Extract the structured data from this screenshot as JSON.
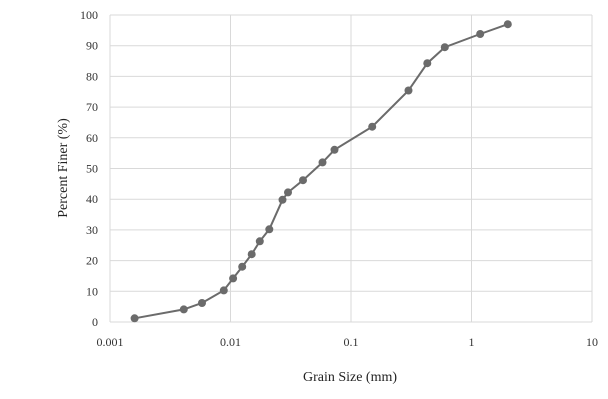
{
  "chart_data": {
    "type": "scatter",
    "title": "",
    "xlabel": "Grain Size (mm)",
    "ylabel": "Percent Finer (%)",
    "xscale": "log",
    "xlim": [
      0.001,
      10
    ],
    "ylim": [
      0,
      100
    ],
    "grid": true,
    "legend": "none",
    "line_color": "#6b6b6b",
    "marker_color": "#6b6b6b",
    "grid_color": "#d9d9d9",
    "x_ticks": [
      "0.001",
      "0.01",
      "0.1",
      "1",
      "10"
    ],
    "y_ticks": [
      "0",
      "10",
      "20",
      "30",
      "40",
      "50",
      "60",
      "70",
      "80",
      "90",
      "100"
    ],
    "series": [
      {
        "x": [
          0.0016,
          0.0041,
          0.0058,
          0.0088,
          0.0105,
          0.0125,
          0.015,
          0.0175,
          0.021,
          0.027,
          0.03,
          0.04,
          0.058,
          0.073,
          0.15,
          0.3,
          0.43,
          0.6,
          1.18,
          2.0
        ],
        "y": [
          1.2,
          4.1,
          6.2,
          10.3,
          14.2,
          18.0,
          22.1,
          26.3,
          30.2,
          39.8,
          42.2,
          46.2,
          52.0,
          56.1,
          63.6,
          75.4,
          84.3,
          89.5,
          93.8,
          97.0
        ]
      }
    ]
  }
}
